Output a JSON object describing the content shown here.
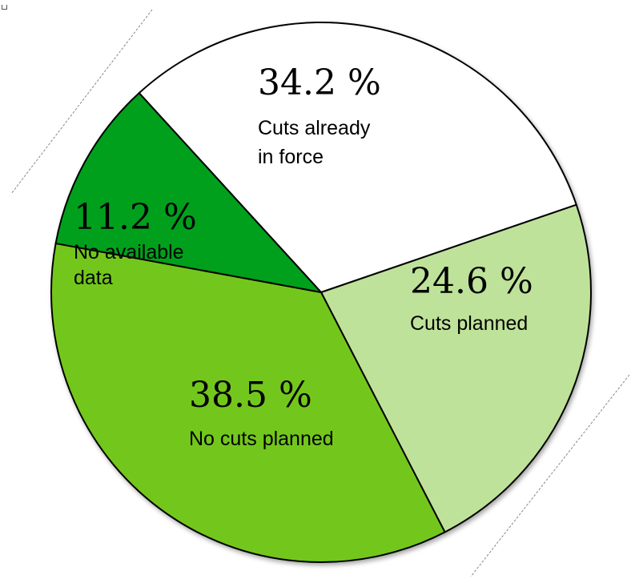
{
  "chart_data": {
    "type": "pie",
    "slices": [
      {
        "value": 34.2,
        "pct_label": "34.2 %",
        "label_lines": [
          "Cuts already",
          "in force"
        ],
        "color": "#ffffff"
      },
      {
        "value": 24.6,
        "pct_label": "24.6 %",
        "label_lines": [
          "Cuts planned"
        ],
        "color": "#bfe29a"
      },
      {
        "value": 38.5,
        "pct_label": "38.5 %",
        "label_lines": [
          "No cuts planned"
        ],
        "color": "#73c71f"
      },
      {
        "value": 11.2,
        "pct_label": "11.2 %",
        "label_lines": [
          "No available",
          "data"
        ],
        "color": "#00a01a"
      }
    ],
    "legend": "none",
    "direction": "clockwise"
  }
}
